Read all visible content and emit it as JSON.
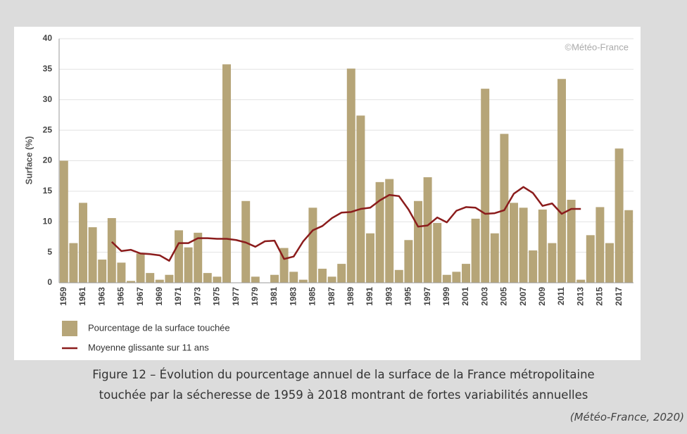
{
  "chart_data": {
    "type": "bar",
    "ylabel": "Surface (%)",
    "watermark": "©Météo-France",
    "caption_lines": [
      "Figure 12 – Évolution du pourcentage annuel de la surface de la France métropolitaine",
      "touchée par la sécheresse de 1959 à 2018 montrant de fortes variabilités annuelles"
    ],
    "source": "(Météo-France, 2020)",
    "categories": [
      "1959",
      null,
      "1961",
      null,
      "1963",
      null,
      "1965",
      null,
      "1967",
      null,
      "1969",
      null,
      "1971",
      null,
      "1973",
      null,
      "1975",
      null,
      "1977",
      null,
      "1979",
      null,
      "1981",
      null,
      "1983",
      null,
      "1985",
      null,
      "1987",
      null,
      "1989",
      null,
      "1991",
      null,
      "1993",
      null,
      "1995",
      null,
      "1997",
      null,
      "1999",
      null,
      "2001",
      null,
      "2003",
      null,
      "2005",
      null,
      "2007",
      null,
      "2009",
      null,
      "2011",
      null,
      "2013",
      null,
      "2015",
      null,
      "2017",
      null
    ],
    "series": [
      {
        "name": "Pourcentage de la surface touchée",
        "type": "bar",
        "color": "#b6a578",
        "values": [
          20,
          6.5,
          13.1,
          9.1,
          3.8,
          10.6,
          3.3,
          0.3,
          4.8,
          1.6,
          0.5,
          1.3,
          8.6,
          5.8,
          8.2,
          1.6,
          1.0,
          35.8,
          0,
          13.4,
          1.0,
          0,
          1.3,
          5.7,
          1.8,
          0.5,
          12.3,
          2.3,
          1.0,
          3.1,
          35.1,
          27.4,
          8.1,
          16.5,
          17.0,
          2.1,
          7.0,
          13.4,
          17.3,
          9.8,
          1.3,
          1.8,
          3.1,
          10.5,
          31.8,
          8.1,
          24.4,
          13.1,
          12.3,
          5.3,
          12.0,
          6.5,
          33.4,
          13.6,
          0.5,
          7.8,
          12.4,
          6.5,
          22.0,
          11.9
        ]
      },
      {
        "name": "Moyenne glissante sur 11 ans",
        "type": "line",
        "color": "#8b1c1c",
        "values": [
          null,
          null,
          null,
          null,
          null,
          6.7,
          5.2,
          5.4,
          4.8,
          4.7,
          4.5,
          3.6,
          6.5,
          6.5,
          7.3,
          7.3,
          7.2,
          7.2,
          7.0,
          6.6,
          5.9,
          6.8,
          6.9,
          3.9,
          4.3,
          6.8,
          8.6,
          9.3,
          10.6,
          11.5,
          11.6,
          12.1,
          12.3,
          13.5,
          14.4,
          14.2,
          12.0,
          9.2,
          9.4,
          10.7,
          9.9,
          11.8,
          12.4,
          12.3,
          11.3,
          11.4,
          11.9,
          14.6,
          15.7,
          14.7,
          12.6,
          13.0,
          11.3,
          12.1,
          12.1,
          null,
          null,
          null,
          null,
          null
        ]
      }
    ],
    "ylim": [
      0,
      40
    ],
    "yticks": [
      0,
      5,
      10,
      15,
      20,
      25,
      30,
      35,
      40
    ],
    "grid": true
  }
}
